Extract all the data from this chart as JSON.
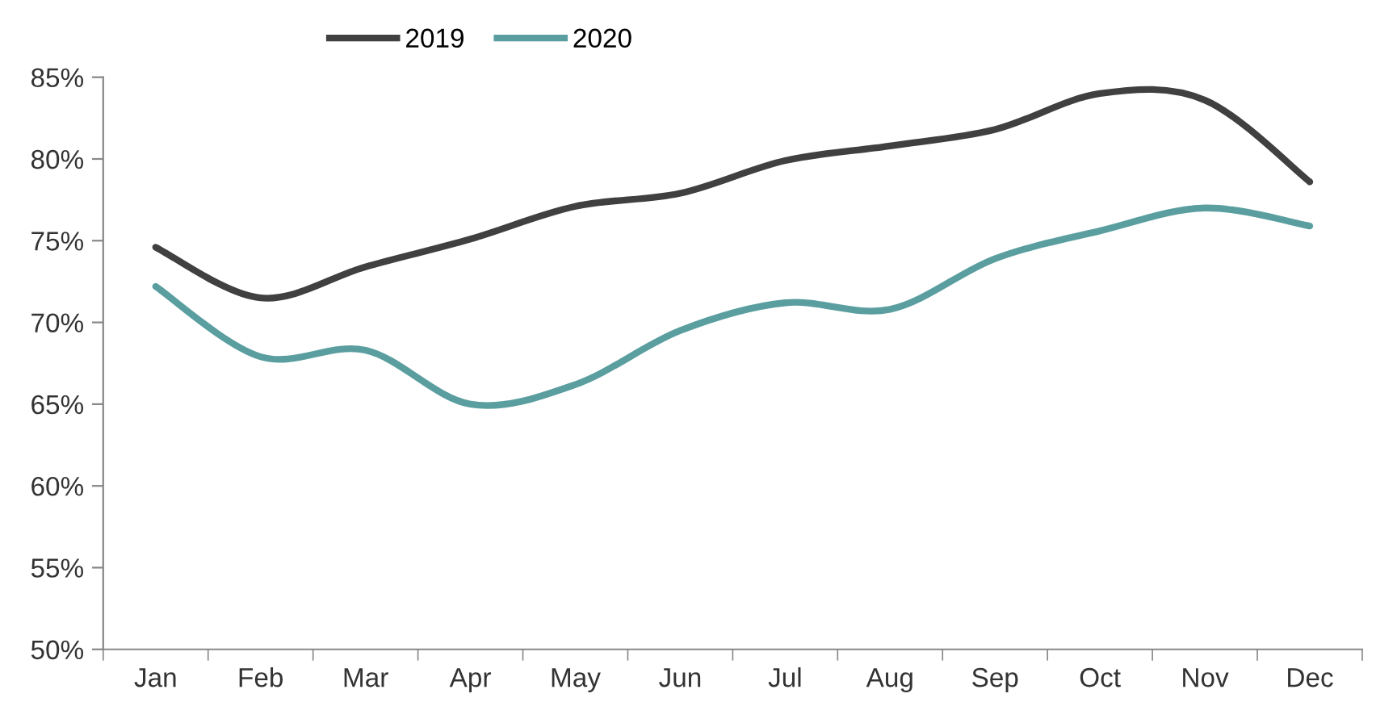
{
  "chart_data": {
    "type": "line",
    "categories": [
      "Jan",
      "Feb",
      "Mar",
      "Apr",
      "May",
      "Jun",
      "Jul",
      "Aug",
      "Sep",
      "Oct",
      "Nov",
      "Dec"
    ],
    "series": [
      {
        "name": "2019",
        "color": "#404040",
        "values": [
          74.6,
          71.5,
          73.4,
          75.1,
          77.1,
          77.9,
          79.9,
          80.8,
          81.8,
          84.0,
          83.6,
          78.6
        ]
      },
      {
        "name": "2020",
        "color": "#5b9ea0",
        "values": [
          72.2,
          67.9,
          68.3,
          65.0,
          66.2,
          69.5,
          71.2,
          70.8,
          73.9,
          75.6,
          77.0,
          75.9
        ]
      }
    ],
    "ylim": [
      50,
      85
    ],
    "yticks": [
      {
        "value": 50,
        "label": "50%"
      },
      {
        "value": 55,
        "label": "55%"
      },
      {
        "value": 60,
        "label": "60%"
      },
      {
        "value": 65,
        "label": "65%"
      },
      {
        "value": 70,
        "label": "70%"
      },
      {
        "value": 75,
        "label": "75%"
      },
      {
        "value": 80,
        "label": "80%"
      },
      {
        "value": 85,
        "label": "85%"
      }
    ],
    "grid": false,
    "legend": "top",
    "marker": "none",
    "line_style": "solid"
  }
}
